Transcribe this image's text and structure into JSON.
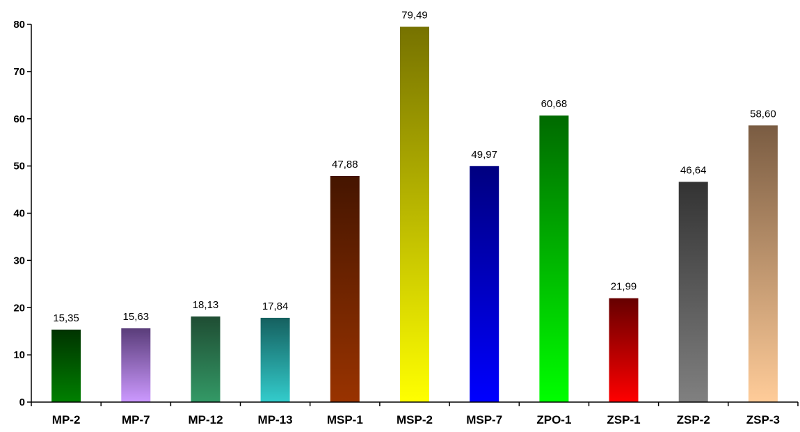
{
  "chart_data": {
    "type": "bar",
    "title": "",
    "xlabel": "",
    "ylabel": "",
    "ylim": [
      0,
      80
    ],
    "yticks": [
      0,
      10,
      20,
      30,
      40,
      50,
      60,
      70,
      80
    ],
    "grid": false,
    "legend": "none",
    "categories": [
      "MP-2",
      "MP-7",
      "MP-12",
      "MP-13",
      "MSP-1",
      "MSP-2",
      "MSP-7",
      "ZPO-1",
      "ZSP-1",
      "ZSP-2",
      "ZSP-3"
    ],
    "values": [
      15.35,
      15.63,
      18.13,
      17.84,
      47.88,
      79.49,
      49.97,
      60.68,
      21.99,
      46.64,
      58.6
    ],
    "value_labels": [
      "15,35",
      "15,63",
      "18,13",
      "17,84",
      "47,88",
      "79,49",
      "49,97",
      "60,68",
      "21,99",
      "46,64",
      "58,60"
    ],
    "bar_gradients": [
      {
        "top": "#003300",
        "bottom": "#008000"
      },
      {
        "top": "#5a3d7a",
        "bottom": "#cc99ff"
      },
      {
        "top": "#1f4d33",
        "bottom": "#339966"
      },
      {
        "top": "#15605f",
        "bottom": "#33cccc"
      },
      {
        "top": "#451500",
        "bottom": "#993300"
      },
      {
        "top": "#767200",
        "bottom": "#ffff00"
      },
      {
        "top": "#000080",
        "bottom": "#0000ff"
      },
      {
        "top": "#006a00",
        "bottom": "#00ff00"
      },
      {
        "top": "#660000",
        "bottom": "#ff0000"
      },
      {
        "top": "#333333",
        "bottom": "#808080"
      },
      {
        "top": "#7a5c42",
        "bottom": "#ffcc99"
      }
    ]
  }
}
